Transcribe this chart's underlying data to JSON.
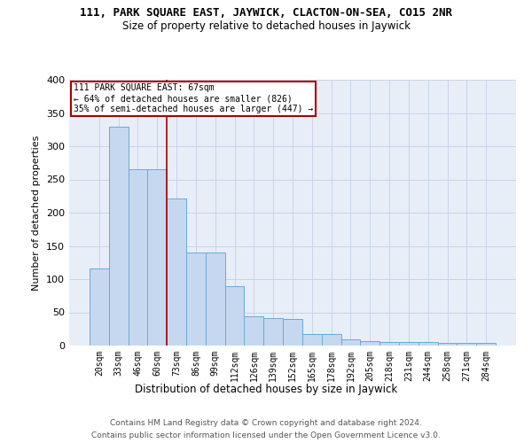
{
  "title": "111, PARK SQUARE EAST, JAYWICK, CLACTON-ON-SEA, CO15 2NR",
  "subtitle": "Size of property relative to detached houses in Jaywick",
  "xlabel": "Distribution of detached houses by size in Jaywick",
  "ylabel": "Number of detached properties",
  "categories": [
    "20sqm",
    "33sqm",
    "46sqm",
    "60sqm",
    "73sqm",
    "86sqm",
    "99sqm",
    "112sqm",
    "126sqm",
    "139sqm",
    "152sqm",
    "165sqm",
    "178sqm",
    "192sqm",
    "205sqm",
    "218sqm",
    "231sqm",
    "244sqm",
    "258sqm",
    "271sqm",
    "284sqm"
  ],
  "values": [
    116,
    330,
    265,
    265,
    221,
    140,
    140,
    90,
    44,
    41,
    40,
    18,
    18,
    9,
    7,
    6,
    6,
    6,
    4,
    4,
    4
  ],
  "bar_color": "#c5d8f0",
  "bar_edge_color": "#6aaad4",
  "vline_x": 3.5,
  "vline_color": "#aa0000",
  "annotation_line1": "111 PARK SQUARE EAST: 67sqm",
  "annotation_line2": "← 64% of detached houses are smaller (826)",
  "annotation_line3": "35% of semi-detached houses are larger (447) →",
  "annotation_box_facecolor": "#ffffff",
  "annotation_box_edgecolor": "#aa0000",
  "grid_color": "#c8d4e8",
  "background_color": "#e8eef8",
  "footer1": "Contains HM Land Registry data © Crown copyright and database right 2024.",
  "footer2": "Contains public sector information licensed under the Open Government Licence v3.0.",
  "ylim": [
    0,
    400
  ],
  "yticks": [
    0,
    50,
    100,
    150,
    200,
    250,
    300,
    350,
    400
  ]
}
